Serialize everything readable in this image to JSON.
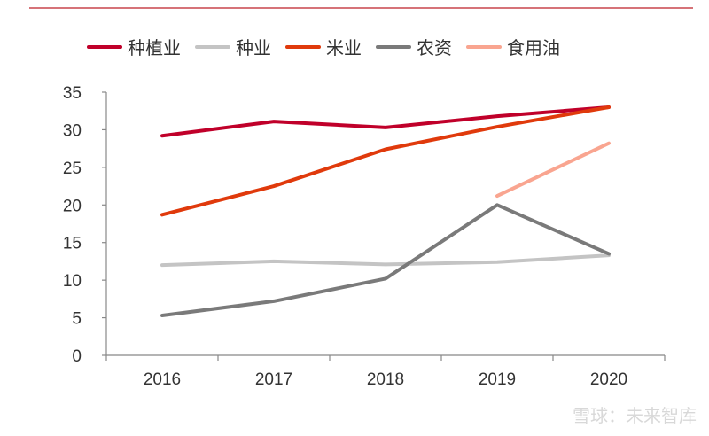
{
  "chart_data": {
    "type": "line",
    "categories": [
      "2016",
      "2017",
      "2018",
      "2019",
      "2020"
    ],
    "ylim": [
      0,
      35
    ],
    "yticks": [
      0,
      5,
      10,
      15,
      20,
      25,
      30,
      35
    ],
    "grid": false,
    "legend_placement": "top",
    "series": [
      {
        "name": "种植业",
        "color": "#c0002a",
        "values": [
          29.2,
          31.1,
          30.3,
          31.8,
          33.0
        ]
      },
      {
        "name": "种业",
        "color": "#c4c4c4",
        "values": [
          12.0,
          12.5,
          12.1,
          12.4,
          13.3
        ]
      },
      {
        "name": "米业",
        "color": "#e03a0c",
        "values": [
          18.7,
          22.5,
          27.4,
          30.4,
          33.0
        ]
      },
      {
        "name": "农资",
        "color": "#7a7a7a",
        "values": [
          5.3,
          7.2,
          10.2,
          20.0,
          13.5
        ]
      },
      {
        "name": "食用油",
        "color": "#f9a590",
        "values": [
          null,
          null,
          null,
          21.2,
          28.2
        ]
      }
    ]
  },
  "watermark": "雪球：未来智库",
  "top_rule_color": "#c9454b"
}
